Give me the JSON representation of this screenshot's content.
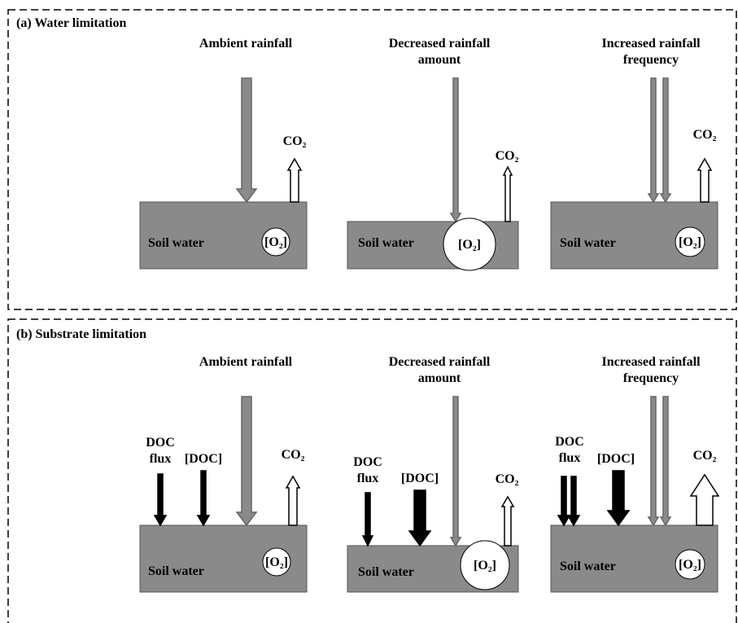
{
  "panels": [
    {
      "title": "(a) Water limitation",
      "scenarios": [
        {
          "heading": [
            "Ambient rainfall"
          ],
          "co2": "CO₂",
          "soil": "Soil water",
          "o2": "[O₂]"
        },
        {
          "heading": [
            "Decreased rainfall",
            "amount"
          ],
          "co2": "CO₂",
          "soil": "Soil water",
          "o2": "[O₂]"
        },
        {
          "heading": [
            "Increased rainfall",
            "frequency"
          ],
          "co2": "CO₂",
          "soil": "Soil water",
          "o2": "[O₂]"
        }
      ]
    },
    {
      "title": "(b) Substrate limitation",
      "scenarios": [
        {
          "heading": [
            "Ambient rainfall"
          ],
          "doc_flux": [
            "DOC",
            "flux"
          ],
          "doc": "[DOC]",
          "co2": "CO₂",
          "soil": "Soil water",
          "o2": "[O₂]"
        },
        {
          "heading": [
            "Decreased rainfall",
            "amount"
          ],
          "doc_flux": [
            "DOC",
            "flux"
          ],
          "doc": "[DOC]",
          "co2": "CO₂",
          "soil": "Soil water",
          "o2": "[O₂]"
        },
        {
          "heading": [
            "Increased rainfall",
            "frequency"
          ],
          "doc_flux": [
            "DOC",
            "flux"
          ],
          "doc": "[DOC]",
          "co2": "CO₂",
          "soil": "Soil water",
          "o2": "[O₂]"
        }
      ]
    }
  ]
}
